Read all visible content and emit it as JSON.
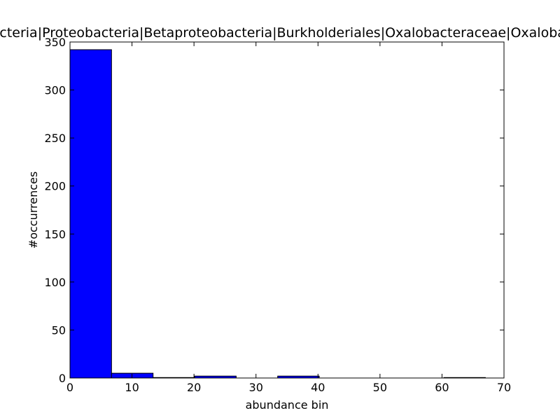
{
  "chart_data": {
    "type": "bar",
    "title": "Bacteria|Proteobacteria|Betaproteobacteria|Burkholderiales|Oxalobacteraceae|Oxalobacter",
    "xlabel": "abundance bin",
    "ylabel": "#occurrences",
    "xlim": [
      0,
      70
    ],
    "ylim": [
      0,
      350
    ],
    "bins": [
      {
        "x0": 0,
        "x1": 6.7,
        "value": 342
      },
      {
        "x0": 6.7,
        "x1": 13.4,
        "value": 5
      },
      {
        "x0": 13.4,
        "x1": 20.1,
        "value": 0.5
      },
      {
        "x0": 20.1,
        "x1": 26.8,
        "value": 2
      },
      {
        "x0": 26.8,
        "x1": 33.5,
        "value": 0
      },
      {
        "x0": 33.5,
        "x1": 40.2,
        "value": 2
      },
      {
        "x0": 40.2,
        "x1": 46.9,
        "value": 0
      },
      {
        "x0": 46.9,
        "x1": 53.6,
        "value": 0
      },
      {
        "x0": 53.6,
        "x1": 60.3,
        "value": 0
      },
      {
        "x0": 60.3,
        "x1": 67.0,
        "value": 0.5
      }
    ],
    "xticks": [
      "0",
      "10",
      "20",
      "30",
      "40",
      "50",
      "60",
      "70"
    ],
    "yticks": [
      "0",
      "50",
      "100",
      "150",
      "200",
      "250",
      "300",
      "350"
    ],
    "bar_color": "#0000ff",
    "grid": false,
    "legend": "none"
  }
}
